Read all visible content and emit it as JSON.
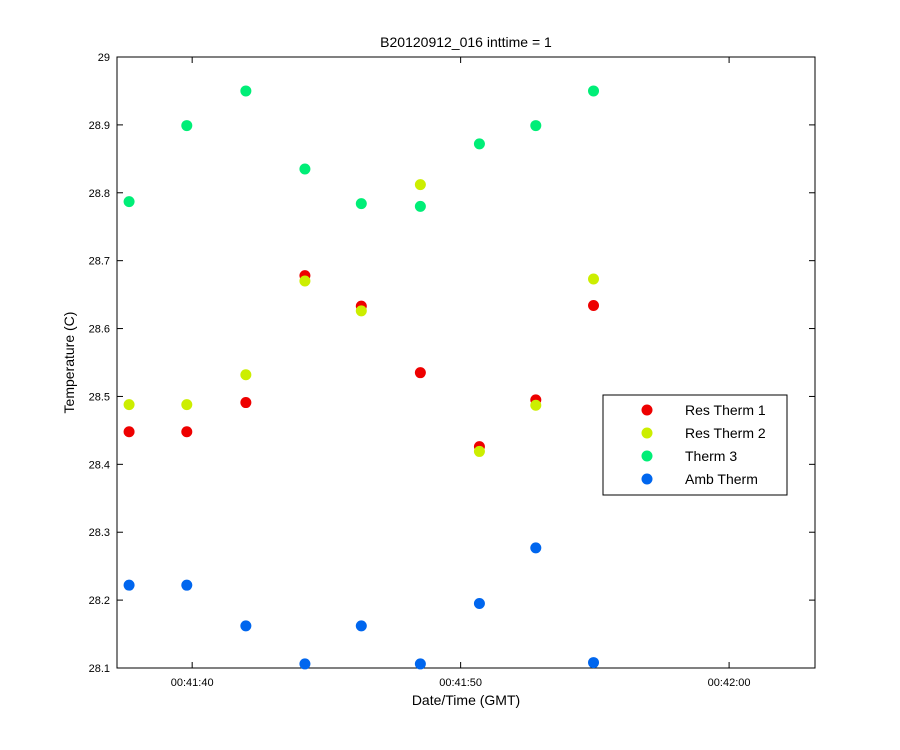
{
  "chart_data": {
    "type": "scatter",
    "title": "B20120912_016 inttime = 1",
    "xlabel": "Date/Time (GMT)",
    "ylabel": "Temperature (C)",
    "xlim": [
      -2.8,
      23.2
    ],
    "ylim": [
      28.1,
      29.0
    ],
    "x_unit": "seconds since 00:41:40",
    "xticks": [
      {
        "value": 0,
        "label": "00:41:40"
      },
      {
        "value": 10,
        "label": "00:41:50"
      },
      {
        "value": 20,
        "label": "00:42:00"
      }
    ],
    "yticks": [
      {
        "value": 28.1,
        "label": "28.1"
      },
      {
        "value": 28.2,
        "label": "28.2"
      },
      {
        "value": 28.3,
        "label": "28.3"
      },
      {
        "value": 28.4,
        "label": "28.4"
      },
      {
        "value": 28.5,
        "label": "28.5"
      },
      {
        "value": 28.6,
        "label": "28.6"
      },
      {
        "value": 28.7,
        "label": "28.7"
      },
      {
        "value": 28.8,
        "label": "28.8"
      },
      {
        "value": 28.9,
        "label": "28.9"
      },
      {
        "value": 29.0,
        "label": "29"
      }
    ],
    "x": [
      -2.35,
      -0.2,
      2.0,
      4.2,
      6.3,
      8.5,
      10.7,
      12.8,
      14.95
    ],
    "series": [
      {
        "name": "Res Therm 1",
        "color": "#ee0000",
        "values": [
          28.448,
          28.448,
          28.491,
          28.678,
          28.633,
          28.535,
          28.426,
          28.495,
          28.634
        ]
      },
      {
        "name": "Res Therm 2",
        "color": "#ccee00",
        "values": [
          28.488,
          28.488,
          28.532,
          28.67,
          28.626,
          28.812,
          28.419,
          28.487,
          28.673
        ]
      },
      {
        "name": "Therm 3",
        "color": "#00ee77",
        "values": [
          28.787,
          28.899,
          28.95,
          28.835,
          28.784,
          28.78,
          28.872,
          28.899,
          28.95
        ]
      },
      {
        "name": "Amb Therm",
        "color": "#0066ee",
        "values": [
          28.222,
          28.222,
          28.162,
          28.106,
          28.162,
          28.106,
          28.195,
          28.277,
          28.108
        ]
      }
    ],
    "grid": false,
    "legend_position": "right-middle"
  }
}
